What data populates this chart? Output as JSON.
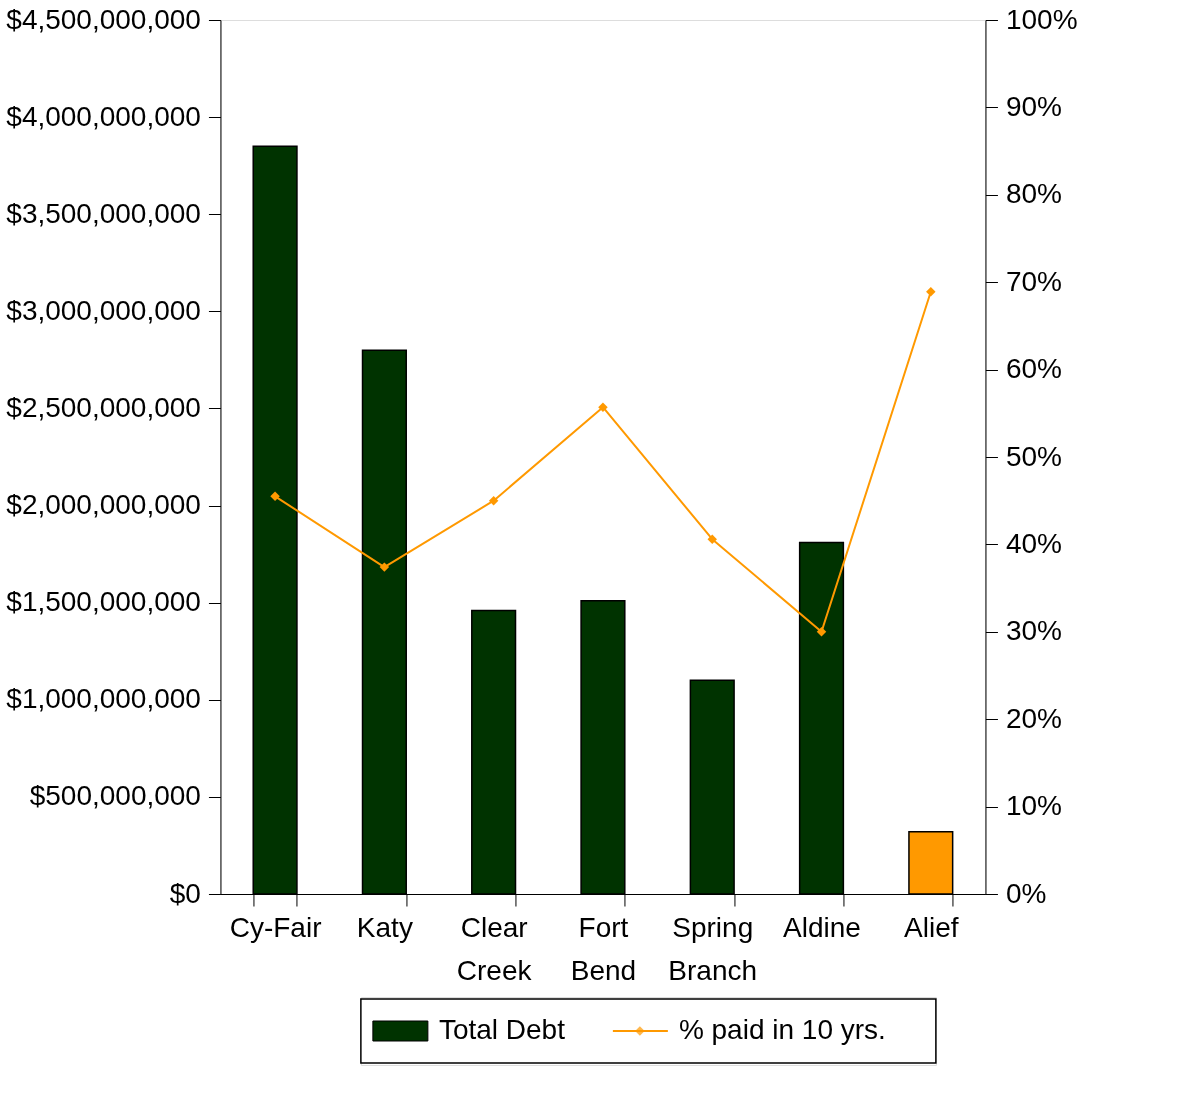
{
  "chart_data": {
    "type": "bar",
    "categories": [
      "Cy-Fair",
      "Katy",
      "Clear Creek",
      "Fort Bend",
      "Spring Branch",
      "Aldine",
      "Alief"
    ],
    "series": [
      {
        "name": "Total Debt",
        "color": "#003300",
        "colors": [
          "#003300",
          "#003300",
          "#003300",
          "#003300",
          "#003300",
          "#003300",
          "#ff9900"
        ],
        "values": [
          3850000000,
          2800000000,
          1460000000,
          1510000000,
          1100000000,
          1810000000,
          320000000
        ]
      },
      {
        "name": "% paid in 10 yrs.",
        "type": "line",
        "axis": "y2",
        "color": "#ff9900",
        "marker": "diamond",
        "values": [
          45.5,
          37.4,
          45.0,
          55.7,
          40.6,
          30.0,
          68.9
        ]
      }
    ],
    "ylim": [
      0,
      4500000000
    ],
    "yticks": [
      {
        "value": 0,
        "label": "$0"
      },
      {
        "value": 500000000,
        "label": "$500,000,000"
      },
      {
        "value": 1000000000,
        "label": "$1,000,000,000"
      },
      {
        "value": 1500000000,
        "label": "$1,500,000,000"
      },
      {
        "value": 2000000000,
        "label": "$2,000,000,000"
      },
      {
        "value": 2500000000,
        "label": "$2,500,000,000"
      },
      {
        "value": 3000000000,
        "label": "$3,000,000,000"
      },
      {
        "value": 3500000000,
        "label": "$3,500,000,000"
      },
      {
        "value": 4000000000,
        "label": "$4,000,000,000"
      },
      {
        "value": 4500000000,
        "label": "$4,500,000,000"
      }
    ],
    "y2lim": [
      0,
      100
    ],
    "y2ticks": [
      {
        "value": 0,
        "label": "0%"
      },
      {
        "value": 10,
        "label": "10%"
      },
      {
        "value": 20,
        "label": "20%"
      },
      {
        "value": 30,
        "label": "30%"
      },
      {
        "value": 40,
        "label": "40%"
      },
      {
        "value": 50,
        "label": "50%"
      },
      {
        "value": 60,
        "label": "60%"
      },
      {
        "value": 70,
        "label": "70%"
      },
      {
        "value": 80,
        "label": "80%"
      },
      {
        "value": 90,
        "label": "90%"
      },
      {
        "value": 100,
        "label": "100%"
      }
    ],
    "legend": "bottom",
    "grid": false
  }
}
